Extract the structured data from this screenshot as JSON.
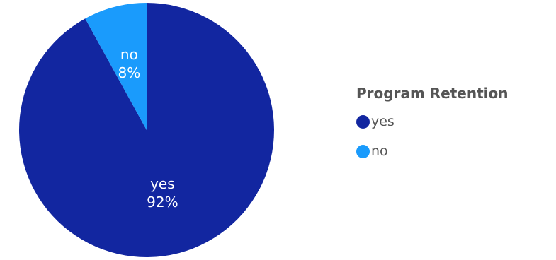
{
  "chart_data": {
    "type": "pie",
    "legend_title": "Program Retention",
    "legend_position": "right",
    "slices": [
      {
        "label": "yes",
        "value": 92,
        "percent_label": "92%",
        "color": "#1226A0"
      },
      {
        "label": "no",
        "value": 8,
        "percent_label": "8%",
        "color": "#1A9BFC"
      }
    ]
  }
}
